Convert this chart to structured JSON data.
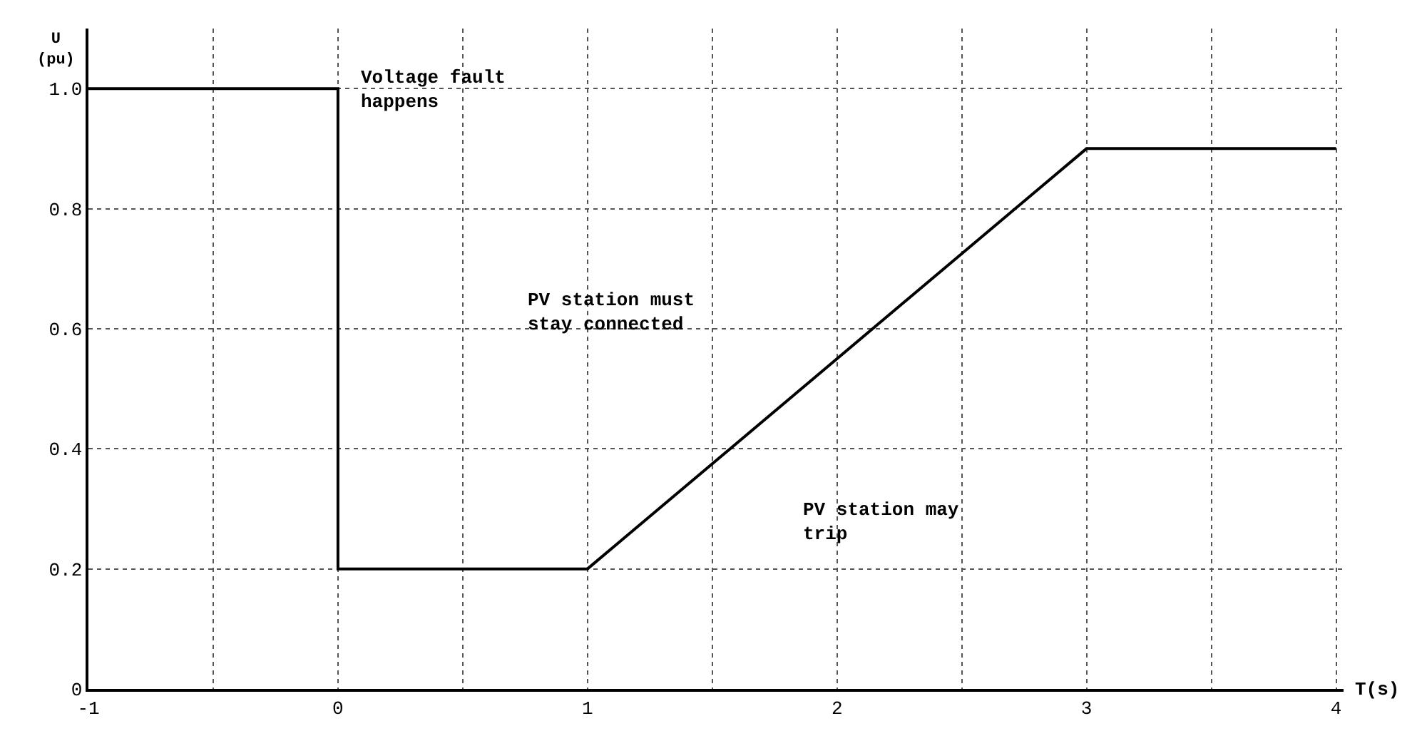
{
  "chart_data": {
    "type": "line",
    "x": [
      -1,
      0,
      0,
      1,
      3,
      4
    ],
    "series": [
      {
        "color": "#000000",
        "values": [
          1.0,
          1.0,
          0.2,
          0.2,
          0.9,
          0.9
        ]
      }
    ],
    "xlabel": "T(s)",
    "ylabel": "U\n(pu)",
    "annotations": [
      "Voltage fault\nhappens",
      "PV station must\nstay connected",
      "PV station may\ntrip"
    ],
    "xlim": [
      -1,
      4.03
    ],
    "xticks": [
      -1,
      {
        "value": -0.5,
        "label": null
      },
      0,
      {
        "value": 0.5,
        "label": null
      },
      1,
      {
        "value": 1.5,
        "label": null
      },
      2,
      {
        "value": 2.5,
        "label": null
      },
      3,
      {
        "value": 3.5,
        "label": null
      },
      4
    ],
    "ylim": [
      0,
      1.1
    ],
    "yticks": [
      0,
      0.2,
      0.4,
      0.6,
      0.8,
      {
        "value": 1,
        "label": "1.0"
      }
    ],
    "grid": true,
    "marker": "none",
    "line_style": "solid",
    "legend": false
  }
}
